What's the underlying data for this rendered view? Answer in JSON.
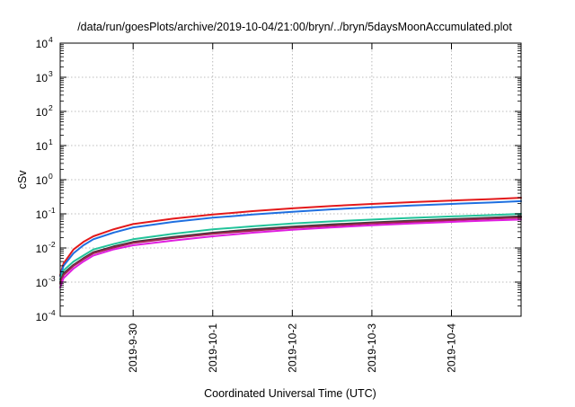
{
  "chart_data": {
    "type": "line",
    "title": "/data/run/goesPlots/archive/2019-10-04/21:00/bryn/../bryn/5daysMoonAccumulated.plot",
    "xlabel": "Coordinated Universal Time (UTC)",
    "ylabel": "cSv",
    "y_scale": "log",
    "ylim": [
      0.0001,
      10000
    ],
    "xlim": [
      "2019-09-29 02:00",
      "2019-10-04 21:00"
    ],
    "grid": true,
    "legend": "none",
    "x_ticks": [
      "2019-9-30",
      "2019-10-1",
      "2019-10-2",
      "2019-10-3",
      "2019-10-4"
    ],
    "x_tick_times": [
      "2019-09-30 00:00",
      "2019-10-01 00:00",
      "2019-10-02 00:00",
      "2019-10-03 00:00",
      "2019-10-04 00:00"
    ],
    "y_ticks": [
      {
        "base": "10",
        "exp": "4",
        "value": 10000
      },
      {
        "base": "10",
        "exp": "3",
        "value": 1000
      },
      {
        "base": "10",
        "exp": "2",
        "value": 100
      },
      {
        "base": "10",
        "exp": "1",
        "value": 10
      },
      {
        "base": "10",
        "exp": "0",
        "value": 1
      },
      {
        "base": "10",
        "exp": "-1",
        "value": 0.1
      },
      {
        "base": "10",
        "exp": "-2",
        "value": 0.01
      },
      {
        "base": "10",
        "exp": "-3",
        "value": 0.001
      },
      {
        "base": "10",
        "exp": "-4",
        "value": 0.0001
      }
    ],
    "x": [
      "2019-09-29 02:00",
      "2019-09-29 03:00",
      "2019-09-29 06:00",
      "2019-09-29 09:00",
      "2019-09-29 12:00",
      "2019-09-29 18:00",
      "2019-09-30 00:00",
      "2019-09-30 12:00",
      "2019-10-01 00:00",
      "2019-10-01 12:00",
      "2019-10-02 00:00",
      "2019-10-02 12:00",
      "2019-10-03 00:00",
      "2019-10-03 12:00",
      "2019-10-04 00:00",
      "2019-10-04 12:00",
      "2019-10-04 21:00"
    ],
    "series": [
      {
        "color": "#e3191b",
        "values": [
          0.0016,
          0.0035,
          0.009,
          0.015,
          0.022,
          0.035,
          0.05,
          0.072,
          0.095,
          0.12,
          0.145,
          0.17,
          0.195,
          0.22,
          0.245,
          0.27,
          0.295
        ]
      },
      {
        "color": "#1f6fe0",
        "values": [
          0.0015,
          0.003,
          0.007,
          0.012,
          0.018,
          0.028,
          0.04,
          0.058,
          0.077,
          0.095,
          0.115,
          0.135,
          0.155,
          0.175,
          0.195,
          0.215,
          0.235
        ]
      },
      {
        "color": "#22c39a",
        "values": [
          0.0012,
          0.0022,
          0.004,
          0.006,
          0.009,
          0.013,
          0.018,
          0.026,
          0.035,
          0.043,
          0.052,
          0.06,
          0.068,
          0.076,
          0.084,
          0.092,
          0.1
        ]
      },
      {
        "color": "#3a3a3a",
        "values": [
          0.001,
          0.0018,
          0.0032,
          0.005,
          0.0075,
          0.011,
          0.015,
          0.021,
          0.028,
          0.035,
          0.042,
          0.049,
          0.056,
          0.063,
          0.07,
          0.077,
          0.085
        ]
      },
      {
        "color": "#a0224f",
        "values": [
          0.0009,
          0.0016,
          0.003,
          0.0047,
          0.007,
          0.0102,
          0.014,
          0.0195,
          0.026,
          0.032,
          0.039,
          0.045,
          0.052,
          0.058,
          0.065,
          0.072,
          0.078
        ]
      },
      {
        "color": "#e01ee0",
        "values": [
          0.0007,
          0.0013,
          0.0025,
          0.004,
          0.006,
          0.009,
          0.012,
          0.0165,
          0.022,
          0.028,
          0.034,
          0.04,
          0.046,
          0.052,
          0.058,
          0.064,
          0.068
        ]
      }
    ]
  }
}
